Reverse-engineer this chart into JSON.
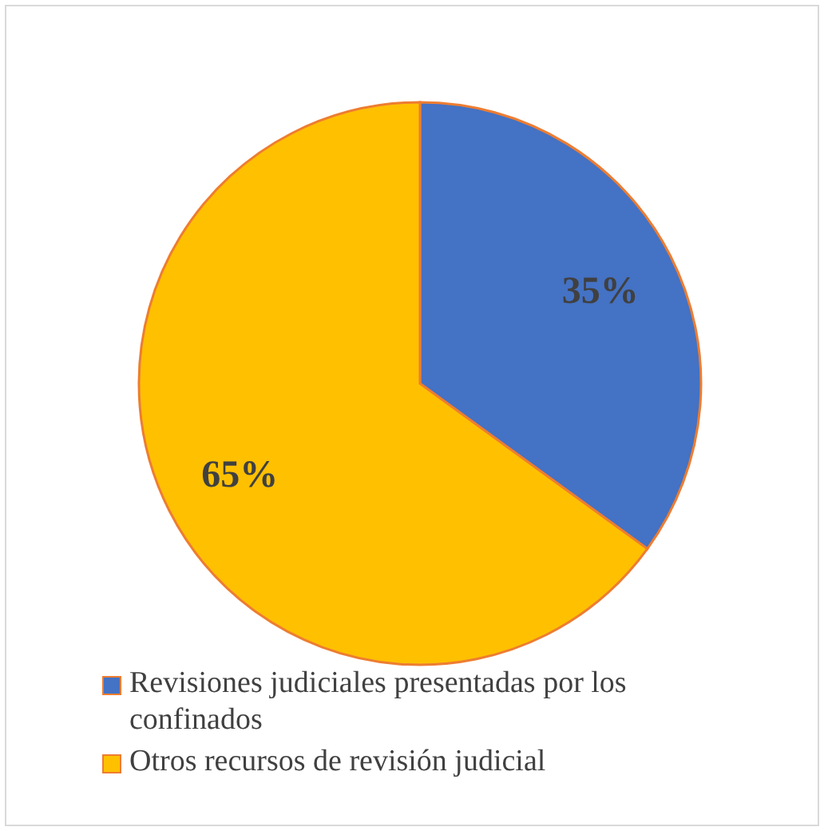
{
  "chart_data": {
    "type": "pie",
    "categories": [
      "Revisiones judiciales presentadas por los confinados",
      "Otros recursos de revisión judicial"
    ],
    "values": [
      35,
      65
    ],
    "colors": [
      "#4472c4",
      "#ffc000"
    ],
    "value_labels": [
      "35%",
      "65%"
    ],
    "legend": "bottom"
  }
}
